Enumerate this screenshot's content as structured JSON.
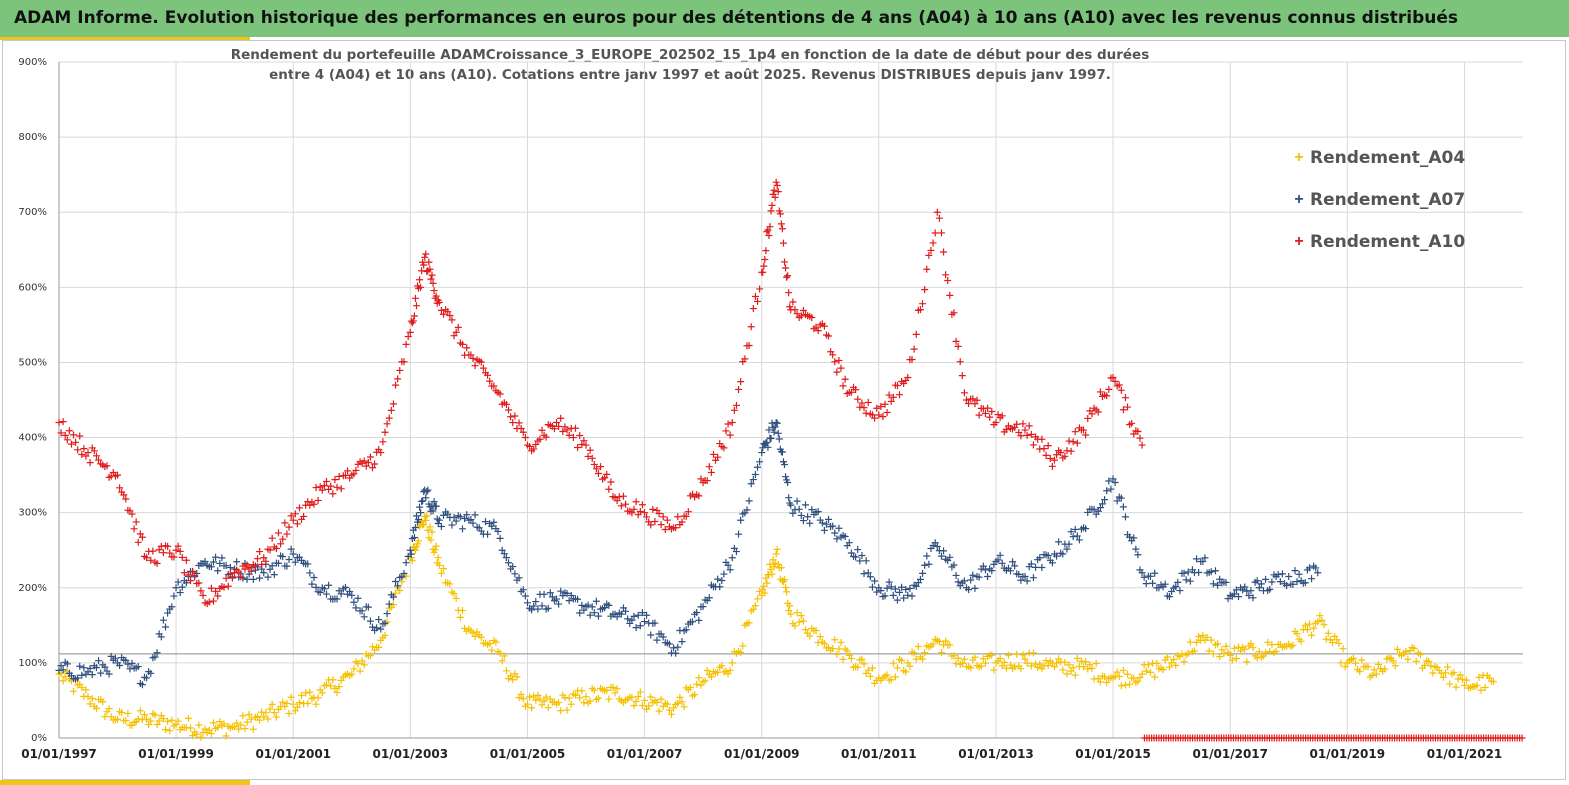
{
  "header": {
    "title": "ADAM Informe. Evolution historique des performances en euros pour des détentions de 4 ans (A04) à 10 ans (A10) avec les revenus connus distribués"
  },
  "chart_data": {
    "type": "scatter",
    "title_line1": "Rendement du portefeuille ADAMCroissance_3_EUROPE_202502_15_1p4  en fonction de la date de début pour des durées",
    "title_line2": "entre 4 (A04) et 10 ans (A10). Cotations entre janv 1997 et août 2025. Revenus DISTRIBUES depuis janv 1997.",
    "xlim": [
      "1997-01-01",
      "2022-01-01"
    ],
    "ylim": [
      0,
      900
    ],
    "y_ticks": [
      "0%",
      "100%",
      "200%",
      "300%",
      "400%",
      "500%",
      "600%",
      "700%",
      "800%",
      "900%"
    ],
    "x_ticks": [
      "01/01/1997",
      "01/01/1999",
      "01/01/2001",
      "01/01/2003",
      "01/01/2005",
      "01/01/2007",
      "01/01/2009",
      "01/01/2011",
      "01/01/2013",
      "01/01/2015",
      "01/01/2017",
      "01/01/2019",
      "01/01/2021"
    ],
    "reference_line_y": 112,
    "grid": true,
    "legend_position": "top-right",
    "marker": "+",
    "series": [
      {
        "name": "Rendement_A04",
        "color": "#f5c000",
        "x": [
          "1997-01",
          "1997-07",
          "1998-01",
          "1998-07",
          "1999-01",
          "1999-07",
          "2000-01",
          "2000-07",
          "2001-01",
          "2001-07",
          "2002-01",
          "2002-07",
          "2003-01",
          "2003-04",
          "2003-07",
          "2004-01",
          "2004-07",
          "2005-01",
          "2005-07",
          "2006-01",
          "2006-07",
          "2007-01",
          "2007-07",
          "2008-01",
          "2008-07",
          "2009-01",
          "2009-04",
          "2009-07",
          "2010-01",
          "2010-07",
          "2011-01",
          "2011-07",
          "2012-01",
          "2012-07",
          "2013-01",
          "2013-07",
          "2014-01",
          "2014-07",
          "2015-01",
          "2015-07",
          "2016-01",
          "2016-07",
          "2017-01",
          "2017-07",
          "2018-01",
          "2018-07",
          "2019-01",
          "2019-07",
          "2020-01",
          "2020-07",
          "2021-01",
          "2021-07"
        ],
        "y": [
          85,
          55,
          25,
          25,
          18,
          12,
          15,
          28,
          45,
          60,
          85,
          130,
          240,
          295,
          230,
          145,
          115,
          45,
          45,
          55,
          60,
          50,
          40,
          75,
          100,
          190,
          245,
          165,
          135,
          110,
          80,
          100,
          130,
          95,
          100,
          105,
          95,
          95,
          80,
          85,
          100,
          130,
          110,
          115,
          125,
          155,
          100,
          85,
          115,
          95,
          70,
          75
        ]
      },
      {
        "name": "Rendement_A07",
        "color": "#2f4f7f",
        "x": [
          "1997-01",
          "1997-07",
          "1998-01",
          "1998-07",
          "1999-01",
          "1999-07",
          "2000-01",
          "2000-07",
          "2001-01",
          "2001-07",
          "2002-01",
          "2002-07",
          "2003-01",
          "2003-04",
          "2003-07",
          "2004-01",
          "2004-07",
          "2005-01",
          "2005-07",
          "2006-01",
          "2006-07",
          "2007-01",
          "2007-07",
          "2008-01",
          "2008-07",
          "2009-01",
          "2009-04",
          "2009-07",
          "2010-01",
          "2010-07",
          "2011-01",
          "2011-07",
          "2012-01",
          "2012-07",
          "2013-01",
          "2013-07",
          "2014-01",
          "2014-07",
          "2015-01",
          "2015-07",
          "2016-01",
          "2016-07",
          "2017-01",
          "2017-07",
          "2018-01",
          "2018-07"
        ],
        "y": [
          90,
          88,
          100,
          80,
          200,
          235,
          225,
          220,
          245,
          200,
          190,
          145,
          250,
          330,
          290,
          290,
          275,
          180,
          185,
          175,
          165,
          155,
          120,
          175,
          240,
          380,
          420,
          310,
          290,
          260,
          200,
          190,
          255,
          200,
          235,
          215,
          245,
          280,
          345,
          220,
          195,
          235,
          190,
          200,
          215,
          220
        ]
      },
      {
        "name": "Rendement_A10",
        "color": "#e01b1b",
        "x": [
          "1997-01",
          "1997-07",
          "1998-01",
          "1998-07",
          "1999-01",
          "1999-07",
          "2000-01",
          "2000-07",
          "2001-01",
          "2001-07",
          "2002-01",
          "2002-07",
          "2003-01",
          "2003-04",
          "2003-07",
          "2004-01",
          "2004-07",
          "2005-01",
          "2005-07",
          "2006-01",
          "2006-07",
          "2007-01",
          "2007-07",
          "2008-01",
          "2008-07",
          "2009-01",
          "2009-04",
          "2009-07",
          "2010-01",
          "2010-07",
          "2011-01",
          "2011-07",
          "2012-01",
          "2012-07",
          "2013-01",
          "2013-07",
          "2014-01",
          "2014-07",
          "2015-01",
          "2015-07"
        ],
        "y": [
          420,
          380,
          350,
          240,
          250,
          180,
          220,
          240,
          290,
          330,
          350,
          380,
          540,
          640,
          580,
          510,
          460,
          390,
          420,
          390,
          320,
          300,
          280,
          340,
          420,
          620,
          740,
          570,
          550,
          460,
          430,
          480,
          700,
          450,
          420,
          410,
          370,
          410,
          480,
          390
        ]
      }
    ]
  }
}
